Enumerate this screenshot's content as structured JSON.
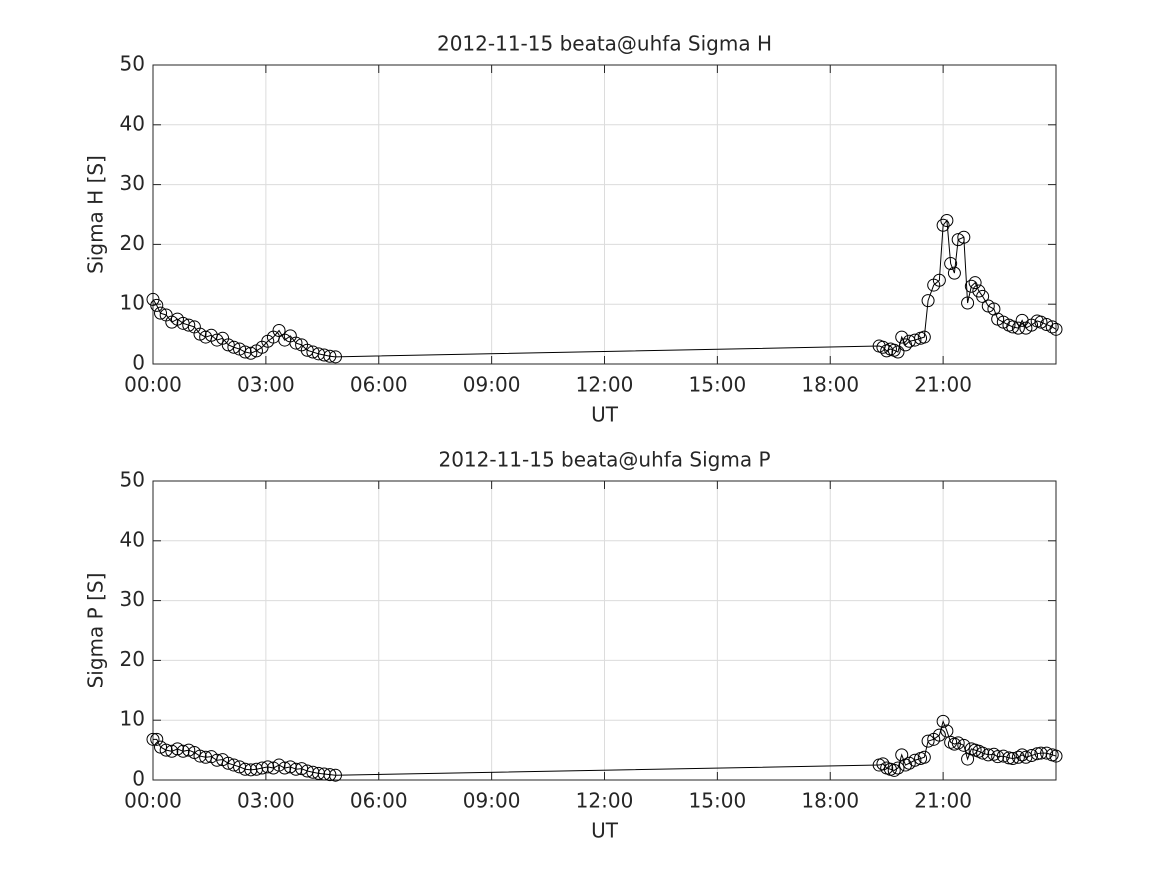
{
  "chart_data": [
    {
      "type": "line",
      "title": "2012-11-15  beata@uhfa Sigma H",
      "xlabel": "UT",
      "ylabel": "Sigma H [S]",
      "color": "#000000",
      "marker": "circle",
      "grid": true,
      "x": [
        0,
        0.1,
        0.2,
        0.35,
        0.5,
        0.65,
        0.8,
        0.95,
        1.1,
        1.25,
        1.4,
        1.55,
        1.7,
        1.85,
        2.0,
        2.15,
        2.3,
        2.45,
        2.6,
        2.75,
        2.9,
        3.05,
        3.2,
        3.35,
        3.5,
        3.65,
        3.8,
        3.95,
        4.1,
        4.25,
        4.4,
        4.55,
        4.7,
        4.85,
        19.3,
        19.4,
        19.5,
        19.6,
        19.7,
        19.8,
        19.9,
        20.0,
        20.1,
        20.25,
        20.4,
        20.5,
        20.6,
        20.75,
        20.9,
        21.0,
        21.1,
        21.2,
        21.3,
        21.4,
        21.55,
        21.65,
        21.75,
        21.85,
        21.95,
        22.05,
        22.2,
        22.35,
        22.45,
        22.6,
        22.75,
        22.85,
        23.0,
        23.1,
        23.2,
        23.35,
        23.5,
        23.6,
        23.75,
        23.9,
        24.0
      ],
      "values": [
        10.8,
        9.8,
        8.5,
        8.2,
        7.0,
        7.5,
        6.8,
        6.5,
        6.2,
        5.0,
        4.5,
        4.8,
        4.0,
        4.3,
        3.2,
        2.8,
        2.5,
        2.0,
        1.8,
        2.2,
        2.8,
        3.8,
        4.5,
        5.6,
        4.0,
        4.7,
        3.5,
        3.2,
        2.3,
        2.0,
        1.7,
        1.5,
        1.3,
        1.2,
        3.0,
        2.8,
        2.2,
        2.5,
        2.3,
        2.0,
        4.5,
        3.2,
        3.8,
        4.0,
        4.3,
        4.5,
        10.6,
        13.2,
        14.0,
        23.2,
        24.0,
        16.8,
        15.2,
        20.8,
        21.2,
        10.2,
        13.0,
        13.6,
        12.2,
        11.3,
        9.7,
        9.2,
        7.5,
        7.0,
        6.5,
        6.2,
        6.0,
        7.3,
        6.0,
        6.5,
        7.2,
        7.0,
        6.6,
        6.2,
        5.8
      ],
      "xlim": [
        0,
        24
      ],
      "ylim": [
        0,
        50
      ],
      "xticks": [
        {
          "value": 0,
          "label": "00:00"
        },
        {
          "value": 3,
          "label": "03:00"
        },
        {
          "value": 6,
          "label": "06:00"
        },
        {
          "value": 9,
          "label": "09:00"
        },
        {
          "value": 12,
          "label": "12:00"
        },
        {
          "value": 15,
          "label": "15:00"
        },
        {
          "value": 18,
          "label": "18:00"
        },
        {
          "value": 21,
          "label": "21:00"
        }
      ],
      "yticks": [
        0,
        10,
        20,
        30,
        40,
        50
      ]
    },
    {
      "type": "line",
      "title": "2012-11-15  beata@uhfa Sigma P",
      "xlabel": "UT",
      "ylabel": "Sigma P [S]",
      "color": "#000000",
      "marker": "circle",
      "grid": true,
      "x": [
        0,
        0.1,
        0.2,
        0.35,
        0.5,
        0.65,
        0.8,
        0.95,
        1.1,
        1.25,
        1.4,
        1.55,
        1.7,
        1.85,
        2.0,
        2.15,
        2.3,
        2.45,
        2.6,
        2.75,
        2.9,
        3.05,
        3.2,
        3.35,
        3.5,
        3.65,
        3.8,
        3.95,
        4.1,
        4.25,
        4.4,
        4.55,
        4.7,
        4.85,
        19.3,
        19.4,
        19.5,
        19.6,
        19.7,
        19.8,
        19.9,
        20.0,
        20.1,
        20.25,
        20.4,
        20.5,
        20.6,
        20.75,
        20.9,
        21.0,
        21.1,
        21.2,
        21.3,
        21.4,
        21.55,
        21.65,
        21.75,
        21.85,
        21.95,
        22.05,
        22.2,
        22.35,
        22.45,
        22.6,
        22.75,
        22.85,
        23.0,
        23.1,
        23.2,
        23.35,
        23.5,
        23.6,
        23.75,
        23.9,
        24.0
      ],
      "values": [
        6.8,
        6.8,
        5.5,
        5.0,
        4.8,
        5.2,
        4.8,
        5.0,
        4.6,
        4.0,
        3.8,
        3.9,
        3.3,
        3.4,
        2.8,
        2.5,
        2.2,
        1.8,
        1.7,
        1.8,
        2.0,
        2.2,
        2.0,
        2.5,
        2.0,
        2.2,
        1.8,
        1.9,
        1.5,
        1.3,
        1.1,
        1.0,
        0.9,
        0.8,
        2.5,
        2.7,
        2.0,
        1.8,
        1.6,
        2.0,
        4.2,
        2.5,
        2.8,
        3.3,
        3.6,
        3.8,
        6.5,
        6.8,
        7.5,
        9.8,
        8.2,
        6.3,
        6.0,
        6.2,
        5.8,
        3.5,
        5.2,
        5.0,
        4.8,
        4.5,
        4.2,
        4.3,
        3.9,
        4.0,
        3.7,
        3.6,
        3.8,
        4.2,
        3.8,
        4.1,
        4.4,
        4.5,
        4.5,
        4.2,
        4.0
      ],
      "xlim": [
        0,
        24
      ],
      "ylim": [
        0,
        50
      ],
      "xticks": [
        {
          "value": 0,
          "label": "00:00"
        },
        {
          "value": 3,
          "label": "03:00"
        },
        {
          "value": 6,
          "label": "06:00"
        },
        {
          "value": 9,
          "label": "09:00"
        },
        {
          "value": 12,
          "label": "12:00"
        },
        {
          "value": 15,
          "label": "15:00"
        },
        {
          "value": 18,
          "label": "18:00"
        },
        {
          "value": 21,
          "label": "21:00"
        }
      ],
      "yticks": [
        0,
        10,
        20,
        30,
        40,
        50
      ]
    }
  ]
}
